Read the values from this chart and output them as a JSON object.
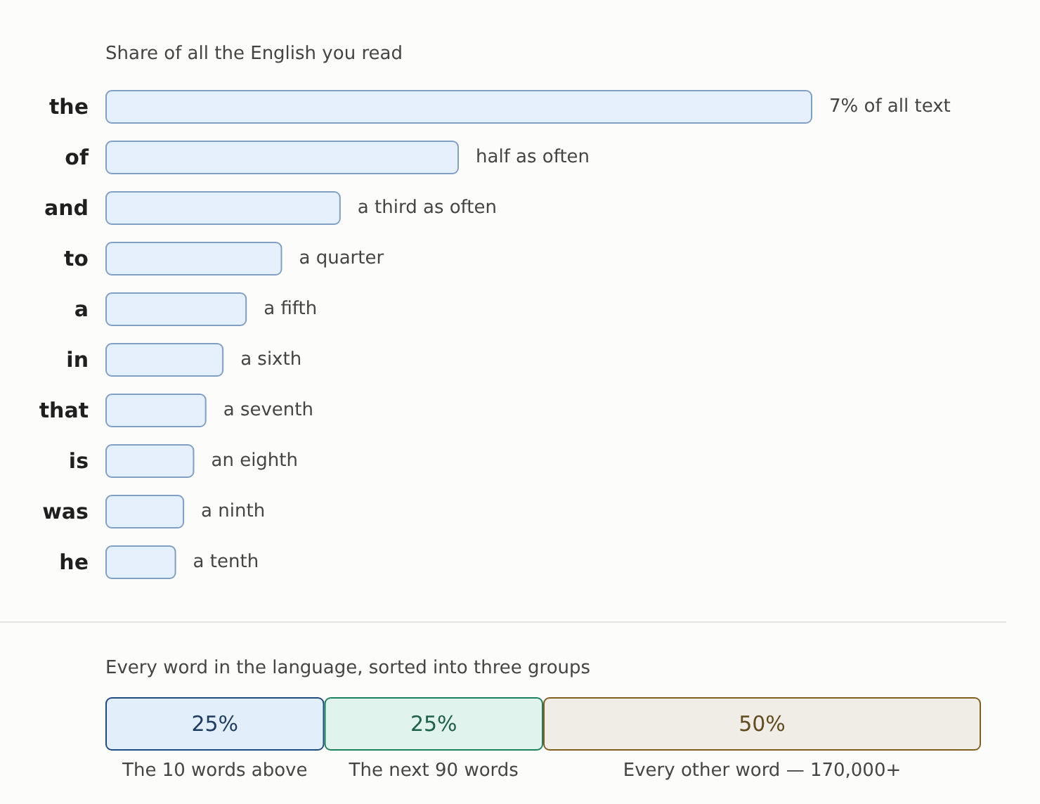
{
  "chart_data": [
    {
      "type": "bar",
      "orientation": "horizontal",
      "tick_labels": "y",
      "xlim": [
        0,
        7
      ],
      "title": "Share of all the English you read",
      "categories": [
        "the",
        "of",
        "and",
        "to",
        "a",
        "in",
        "that",
        "is",
        "was",
        "he"
      ],
      "values": [
        7,
        3.5,
        2.33,
        1.75,
        1.4,
        1.17,
        1,
        0.88,
        0.78,
        0.7
      ],
      "value_labels": [
        "7% of all text",
        "half as often",
        "a third as often",
        "a quarter",
        "a fifth",
        "a sixth",
        "a seventh",
        "an eighth",
        "a ninth",
        "a tenth"
      ],
      "color": "#e6f0fc"
    },
    {
      "type": "bar",
      "orientation": "horizontal",
      "stacked": true,
      "tick_labels": false,
      "title": "Every word in the language, sorted into three groups",
      "categories": [
        null
      ],
      "xlim": [
        0,
        100
      ],
      "series": [
        {
          "name": "The 10 words above",
          "color": "#e3eefb",
          "values": [
            25
          ],
          "value_labels": [
            "25%"
          ]
        },
        {
          "name": "The next 90 words",
          "color": "#e0f3ec",
          "values": [
            25
          ],
          "value_labels": [
            "25%"
          ]
        },
        {
          "name": "Every other word — 170,000+",
          "color": "#f0ede7",
          "values": [
            50
          ],
          "value_labels": [
            "50%"
          ]
        }
      ]
    }
  ]
}
